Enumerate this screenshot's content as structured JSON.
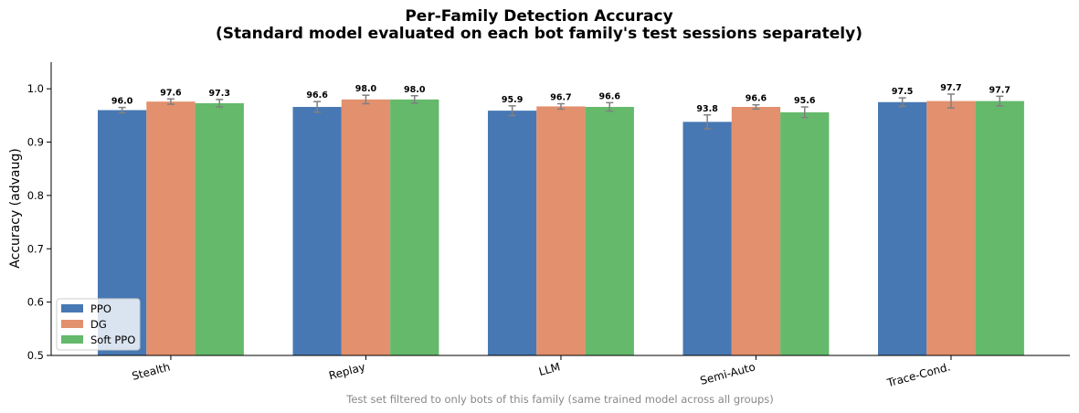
{
  "chart_data": {
    "type": "bar",
    "title": "Per-Family Detection Accuracy",
    "subtitle": "(Standard model evaluated on each bot family's test sessions separately)",
    "xlabel": "Test set filtered to only bots of this family (same trained model across all groups)",
    "ylabel": "Accuracy (advaug)",
    "ylim": [
      0.5,
      1.05
    ],
    "yticks": [
      "0.5",
      "0.6",
      "0.7",
      "0.8",
      "0.9",
      "1.0"
    ],
    "categories": [
      "Stealth",
      "Replay",
      "LLM",
      "Semi-Auto",
      "Trace-Cond."
    ],
    "series": [
      {
        "name": "PPO",
        "color": "#4878b3",
        "values": [
          0.96,
          0.966,
          0.959,
          0.938,
          0.975
        ],
        "errors": [
          0.005,
          0.01,
          0.009,
          0.013,
          0.008
        ],
        "labels": [
          "96.0",
          "96.6",
          "95.9",
          "93.8",
          "97.5"
        ]
      },
      {
        "name": "DG",
        "color": "#e2906d",
        "values": [
          0.976,
          0.98,
          0.967,
          0.966,
          0.977
        ],
        "errors": [
          0.005,
          0.008,
          0.005,
          0.004,
          0.013
        ],
        "labels": [
          "97.6",
          "98.0",
          "96.7",
          "96.6",
          "97.7"
        ]
      },
      {
        "name": "Soft PPO",
        "color": "#64b96b",
        "values": [
          0.973,
          0.98,
          0.966,
          0.956,
          0.977
        ],
        "errors": [
          0.007,
          0.007,
          0.008,
          0.01,
          0.009
        ],
        "labels": [
          "97.3",
          "98.0",
          "96.6",
          "95.6",
          "97.7"
        ]
      }
    ],
    "grid": false,
    "legend_position": "lower-left",
    "errorbar_color": "#808080"
  }
}
